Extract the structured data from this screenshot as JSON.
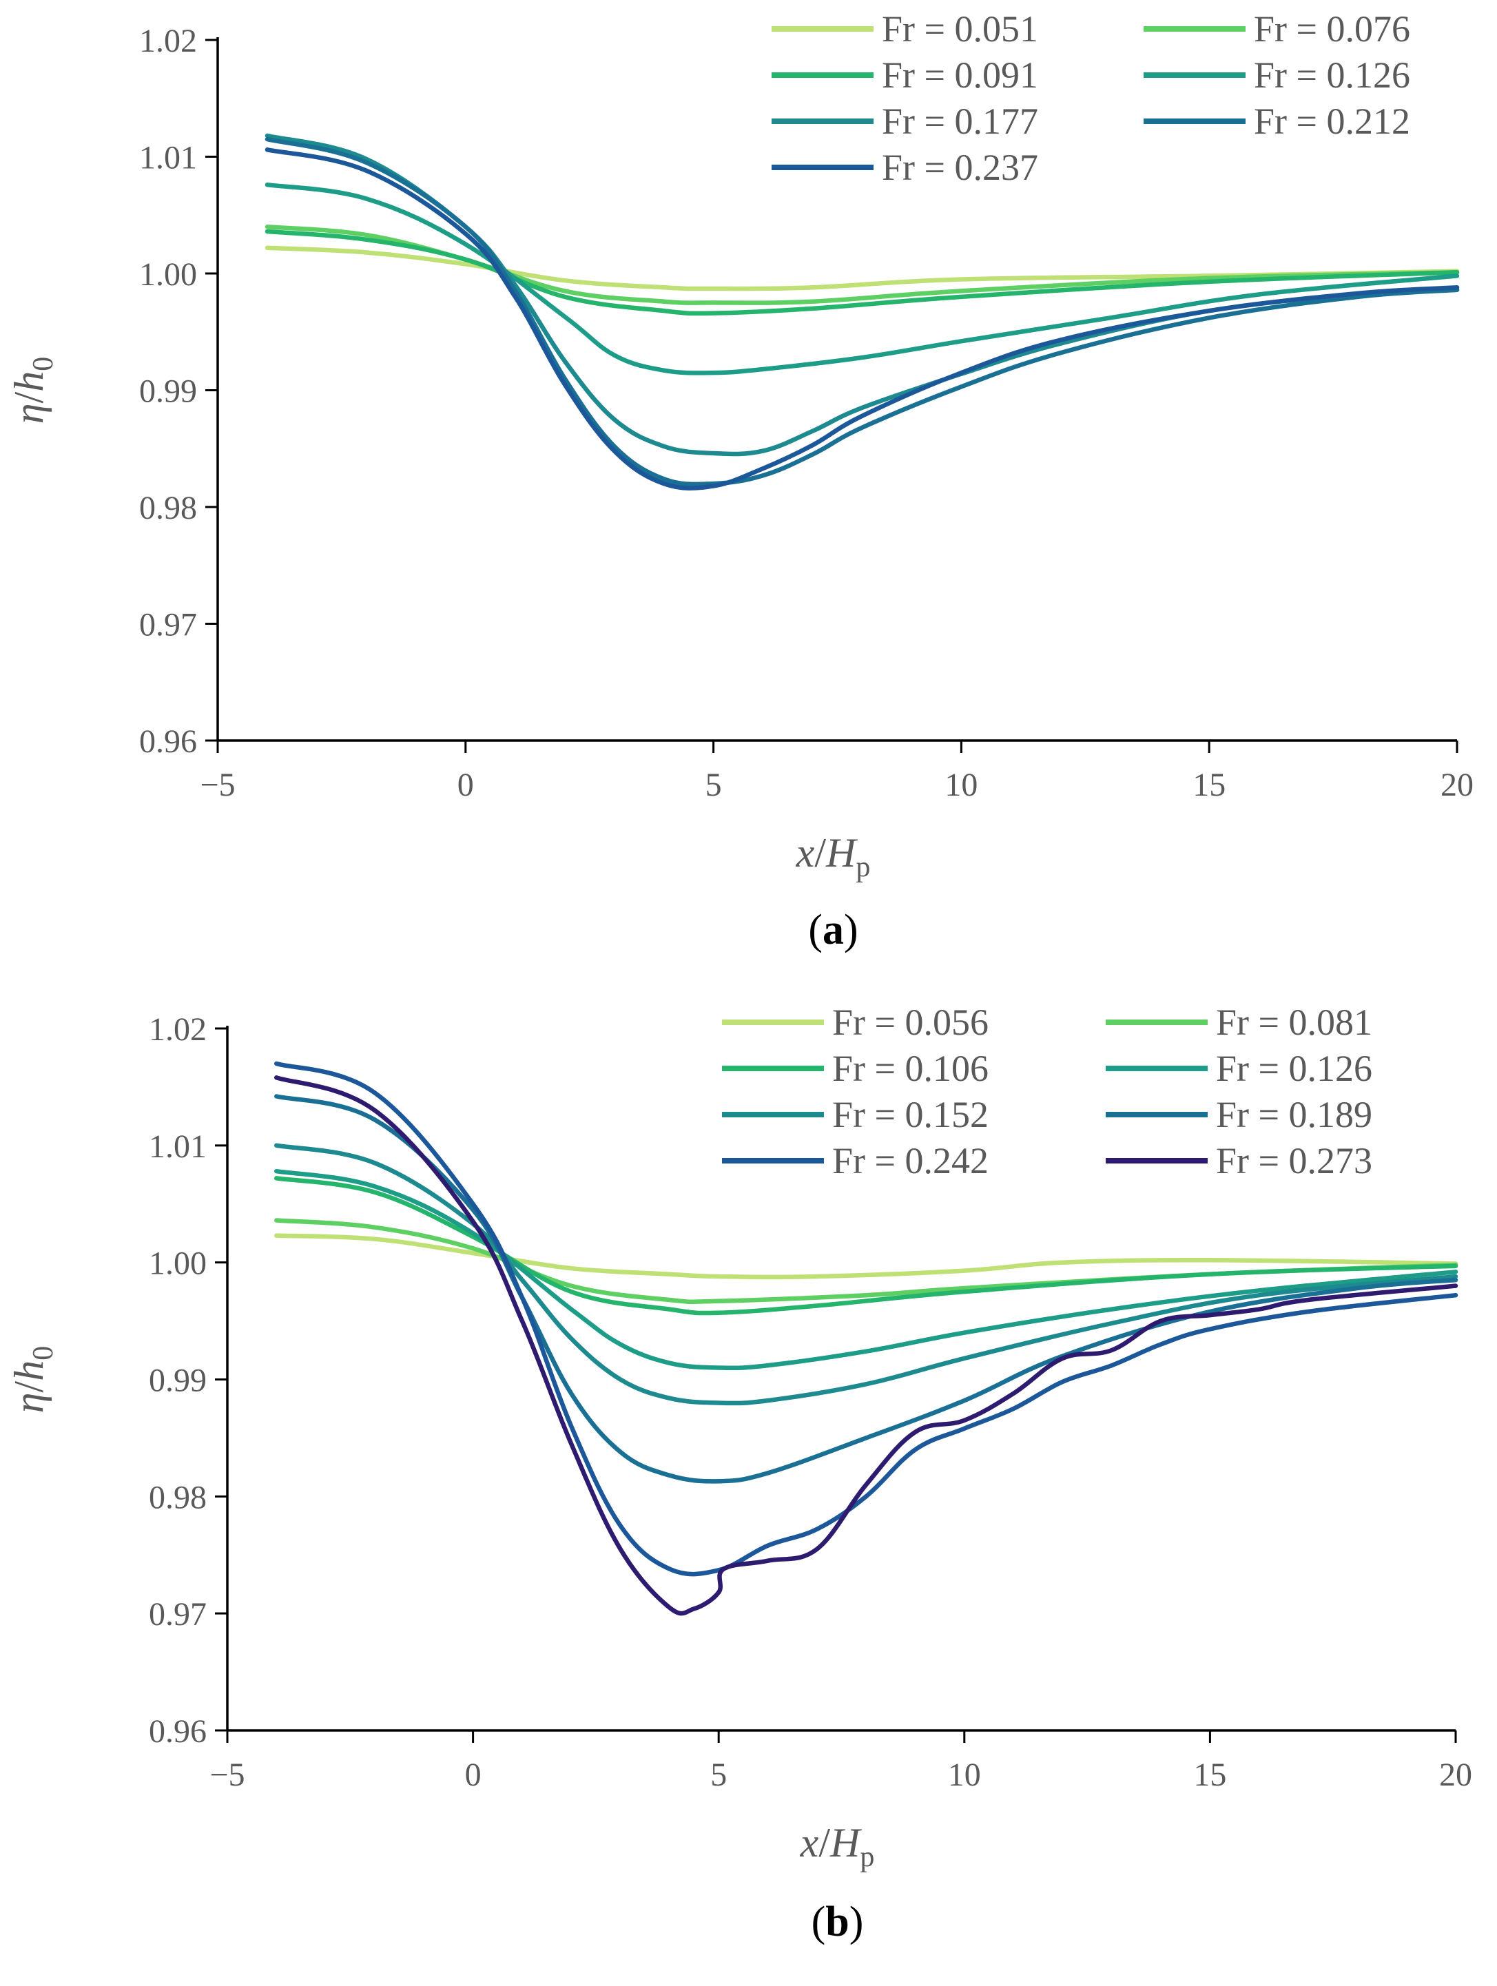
{
  "chart_data": [
    {
      "type": "line",
      "panel_label": "(a)",
      "panel_letter": "a",
      "xlabel": "x/Hp",
      "xlabel_parts": {
        "x": "x",
        "slash": "/",
        "H": "H",
        "sub": "p"
      },
      "ylabel": "η/h0",
      "ylabel_parts": {
        "eta": "η",
        "slash": "/",
        "h": "h",
        "sub": "0"
      },
      "xlim": [
        -5,
        20
      ],
      "ylim": [
        0.96,
        1.02
      ],
      "x_ticks": [
        "−5",
        "0",
        "5",
        "10",
        "15",
        "20"
      ],
      "x_tick_values": [
        -5,
        0,
        5,
        10,
        15,
        20
      ],
      "y_ticks": [
        "0.96",
        "0.97",
        "0.98",
        "0.99",
        "1.00",
        "1.01",
        "1.02"
      ],
      "y_tick_values": [
        0.96,
        0.97,
        0.98,
        0.99,
        1.0,
        1.01,
        1.02
      ],
      "grid": false,
      "legend_position": "top-right",
      "series": [
        {
          "name": "Fr = 0.051",
          "color": "#bfe074",
          "points": [
            [
              -4,
              1.0022
            ],
            [
              -2,
              1.0018
            ],
            [
              0,
              1.0008
            ],
            [
              2,
              0.9994
            ],
            [
              4,
              0.9988
            ],
            [
              5,
              0.9987
            ],
            [
              7,
              0.9988
            ],
            [
              10,
              0.9995
            ],
            [
              15,
              0.9998
            ],
            [
              20,
              1.0002
            ]
          ]
        },
        {
          "name": "Fr = 0.076",
          "color": "#5ed063",
          "points": [
            [
              -4,
              1.004
            ],
            [
              -2,
              1.0033
            ],
            [
              0,
              1.0012
            ],
            [
              2,
              0.9985
            ],
            [
              4,
              0.9976
            ],
            [
              5,
              0.9975
            ],
            [
              7,
              0.9976
            ],
            [
              10,
              0.9985
            ],
            [
              15,
              0.9996
            ],
            [
              20,
              1.0001
            ]
          ]
        },
        {
          "name": "Fr = 0.091",
          "color": "#24b46b",
          "points": [
            [
              -4,
              1.0036
            ],
            [
              -2,
              1.0029
            ],
            [
              0,
              1.0012
            ],
            [
              2,
              0.998
            ],
            [
              4,
              0.9968
            ],
            [
              5,
              0.9966
            ],
            [
              7,
              0.997
            ],
            [
              10,
              0.998
            ],
            [
              15,
              0.9993
            ],
            [
              20,
              1.0001
            ]
          ]
        },
        {
          "name": "Fr = 0.126",
          "color": "#1d9d88",
          "points": [
            [
              -4,
              1.0076
            ],
            [
              -2,
              1.0064
            ],
            [
              0,
              1.0025
            ],
            [
              2,
              0.9963
            ],
            [
              3,
              0.993
            ],
            [
              4,
              0.9917
            ],
            [
              5,
              0.9915
            ],
            [
              6,
              0.9918
            ],
            [
              8,
              0.9928
            ],
            [
              10,
              0.9942
            ],
            [
              13,
              0.9962
            ],
            [
              16,
              0.9982
            ],
            [
              20,
              0.9998
            ]
          ]
        },
        {
          "name": "Fr = 0.177",
          "color": "#1d8a8f",
          "points": [
            [
              -4,
              1.0118
            ],
            [
              -2,
              1.0098
            ],
            [
              0,
              1.004
            ],
            [
              1,
              0.999
            ],
            [
              2,
              0.9925
            ],
            [
              3,
              0.9875
            ],
            [
              4,
              0.9852
            ],
            [
              5,
              0.9846
            ],
            [
              6,
              0.9848
            ],
            [
              7,
              0.9865
            ],
            [
              8,
              0.9885
            ],
            [
              10,
              0.9914
            ],
            [
              12,
              0.994
            ],
            [
              15,
              0.9968
            ],
            [
              18,
              0.9982
            ],
            [
              20,
              0.9986
            ]
          ]
        },
        {
          "name": "Fr = 0.212",
          "color": "#1a6f94",
          "points": [
            [
              -4,
              1.0115
            ],
            [
              -2,
              1.0095
            ],
            [
              0,
              1.004
            ],
            [
              1,
              0.9985
            ],
            [
              2,
              0.991
            ],
            [
              3,
              0.9852
            ],
            [
              4,
              0.9824
            ],
            [
              5,
              0.982
            ],
            [
              6,
              0.9827
            ],
            [
              7,
              0.9845
            ],
            [
              8,
              0.9868
            ],
            [
              10,
              0.9903
            ],
            [
              12,
              0.9932
            ],
            [
              15,
              0.9962
            ],
            [
              18,
              0.998
            ],
            [
              20,
              0.9986
            ]
          ]
        },
        {
          "name": "Fr = 0.237",
          "color": "#1b5799",
          "points": [
            [
              -4,
              1.0106
            ],
            [
              -2,
              1.0088
            ],
            [
              0,
              1.0034
            ],
            [
              1,
              0.998
            ],
            [
              2,
              0.9905
            ],
            [
              3,
              0.9848
            ],
            [
              4,
              0.982
            ],
            [
              5,
              0.9818
            ],
            [
              6,
              0.9833
            ],
            [
              7,
              0.9853
            ],
            [
              8,
              0.9878
            ],
            [
              10,
              0.9915
            ],
            [
              12,
              0.9943
            ],
            [
              15,
              0.9968
            ],
            [
              18,
              0.9983
            ],
            [
              20,
              0.9988
            ]
          ]
        }
      ]
    },
    {
      "type": "line",
      "panel_label": "(b)",
      "panel_letter": "b",
      "xlabel": "x/Hp",
      "xlabel_parts": {
        "x": "x",
        "slash": "/",
        "H": "H",
        "sub": "p"
      },
      "ylabel": "η/h0",
      "ylabel_parts": {
        "eta": "η",
        "slash": "/",
        "h": "h",
        "sub": "0"
      },
      "xlim": [
        -5,
        20
      ],
      "ylim": [
        0.96,
        1.02
      ],
      "x_ticks": [
        "−5",
        "0",
        "5",
        "10",
        "15",
        "20"
      ],
      "x_tick_values": [
        -5,
        0,
        5,
        10,
        15,
        20
      ],
      "y_ticks": [
        "0.96",
        "0.97",
        "0.98",
        "0.99",
        "1.00",
        "1.01",
        "1.02"
      ],
      "y_tick_values": [
        0.96,
        0.97,
        0.98,
        0.99,
        1.0,
        1.01,
        1.02
      ],
      "grid": false,
      "legend_position": "top-right",
      "series": [
        {
          "name": "Fr = 0.056",
          "color": "#bfe074",
          "points": [
            [
              -4,
              1.0023
            ],
            [
              -2,
              1.002
            ],
            [
              0,
              1.0008
            ],
            [
              2,
              0.9995
            ],
            [
              4,
              0.999
            ],
            [
              5,
              0.9988
            ],
            [
              7,
              0.9988
            ],
            [
              10,
              0.9993
            ],
            [
              12,
              1.0
            ],
            [
              15,
              1.0002
            ],
            [
              20,
              0.9999
            ]
          ]
        },
        {
          "name": "Fr = 0.081",
          "color": "#5ed063",
          "points": [
            [
              -4,
              1.0036
            ],
            [
              -2,
              1.003
            ],
            [
              0,
              1.0012
            ],
            [
              2,
              0.998
            ],
            [
              4,
              0.9968
            ],
            [
              5,
              0.9967
            ],
            [
              8,
              0.9972
            ],
            [
              10,
              0.9978
            ],
            [
              15,
              0.999
            ],
            [
              20,
              0.9998
            ]
          ]
        },
        {
          "name": "Fr = 0.106",
          "color": "#24b46b",
          "points": [
            [
              -4,
              1.0072
            ],
            [
              -2,
              1.006
            ],
            [
              0,
              1.0022
            ],
            [
              2,
              0.9975
            ],
            [
              4,
              0.996
            ],
            [
              5,
              0.9957
            ],
            [
              7,
              0.9963
            ],
            [
              10,
              0.9975
            ],
            [
              15,
              0.999
            ],
            [
              20,
              0.9997
            ]
          ]
        },
        {
          "name": "Fr = 0.126",
          "color": "#1d9d88",
          "points": [
            [
              -4,
              1.0078
            ],
            [
              -2,
              1.0065
            ],
            [
              0,
              1.0025
            ],
            [
              2,
              0.996
            ],
            [
              3,
              0.993
            ],
            [
              4,
              0.9914
            ],
            [
              5,
              0.991
            ],
            [
              6,
              0.9912
            ],
            [
              8,
              0.9924
            ],
            [
              10,
              0.994
            ],
            [
              13,
              0.996
            ],
            [
              16,
              0.9976
            ],
            [
              20,
              0.9992
            ]
          ]
        },
        {
          "name": "Fr = 0.152",
          "color": "#1d8a8f",
          "points": [
            [
              -4,
              1.01
            ],
            [
              -2,
              1.0085
            ],
            [
              0,
              1.0033
            ],
            [
              1,
              0.9985
            ],
            [
              2,
              0.9935
            ],
            [
              3,
              0.99
            ],
            [
              4,
              0.9884
            ],
            [
              5,
              0.988
            ],
            [
              6,
              0.9882
            ],
            [
              8,
              0.9896
            ],
            [
              10,
              0.9918
            ],
            [
              13,
              0.9948
            ],
            [
              16,
              0.9972
            ],
            [
              20,
              0.9988
            ]
          ]
        },
        {
          "name": "Fr = 0.189",
          "color": "#1a6f94",
          "points": [
            [
              -4,
              1.0142
            ],
            [
              -2,
              1.0122
            ],
            [
              0,
              1.0045
            ],
            [
              1,
              0.997
            ],
            [
              2,
              0.9888
            ],
            [
              3,
              0.9838
            ],
            [
              4,
              0.9818
            ],
            [
              5,
              0.9813
            ],
            [
              6,
              0.982
            ],
            [
              8,
              0.985
            ],
            [
              10,
              0.9882
            ],
            [
              12,
              0.992
            ],
            [
              15,
              0.9958
            ],
            [
              18,
              0.9978
            ],
            [
              20,
              0.9985
            ]
          ]
        },
        {
          "name": "Fr = 0.242",
          "color": "#1b5799",
          "points": [
            [
              -4,
              1.017
            ],
            [
              -2,
              1.0145
            ],
            [
              0,
              1.005
            ],
            [
              1,
              0.997
            ],
            [
              2,
              0.986
            ],
            [
              3,
              0.9775
            ],
            [
              4,
              0.9738
            ],
            [
              5,
              0.9737
            ],
            [
              6,
              0.9758
            ],
            [
              7,
              0.9772
            ],
            [
              8,
              0.98
            ],
            [
              9,
              0.984
            ],
            [
              10,
              0.9858
            ],
            [
              11,
              0.9875
            ],
            [
              12,
              0.9898
            ],
            [
              13,
              0.9912
            ],
            [
              14,
              0.993
            ],
            [
              15,
              0.9943
            ],
            [
              17,
              0.9958
            ],
            [
              20,
              0.9972
            ]
          ]
        },
        {
          "name": "Fr = 0.273",
          "color": "#2e1b70",
          "points": [
            [
              -4,
              1.0158
            ],
            [
              -2,
              1.013
            ],
            [
              0,
              1.0035
            ],
            [
              1,
              0.995
            ],
            [
              2,
              0.9845
            ],
            [
              3,
              0.9755
            ],
            [
              4,
              0.9705
            ],
            [
              4.5,
              0.9704
            ],
            [
              5,
              0.9718
            ],
            [
              5.1,
              0.9738
            ],
            [
              6,
              0.9745
            ],
            [
              7,
              0.9755
            ],
            [
              8,
              0.981
            ],
            [
              9,
              0.9855
            ],
            [
              10,
              0.9865
            ],
            [
              11,
              0.9888
            ],
            [
              12,
              0.9918
            ],
            [
              13,
              0.9925
            ],
            [
              14,
              0.995
            ],
            [
              15,
              0.9955
            ],
            [
              16,
              0.996
            ],
            [
              17,
              0.9968
            ],
            [
              20,
              0.998
            ]
          ]
        }
      ]
    }
  ]
}
